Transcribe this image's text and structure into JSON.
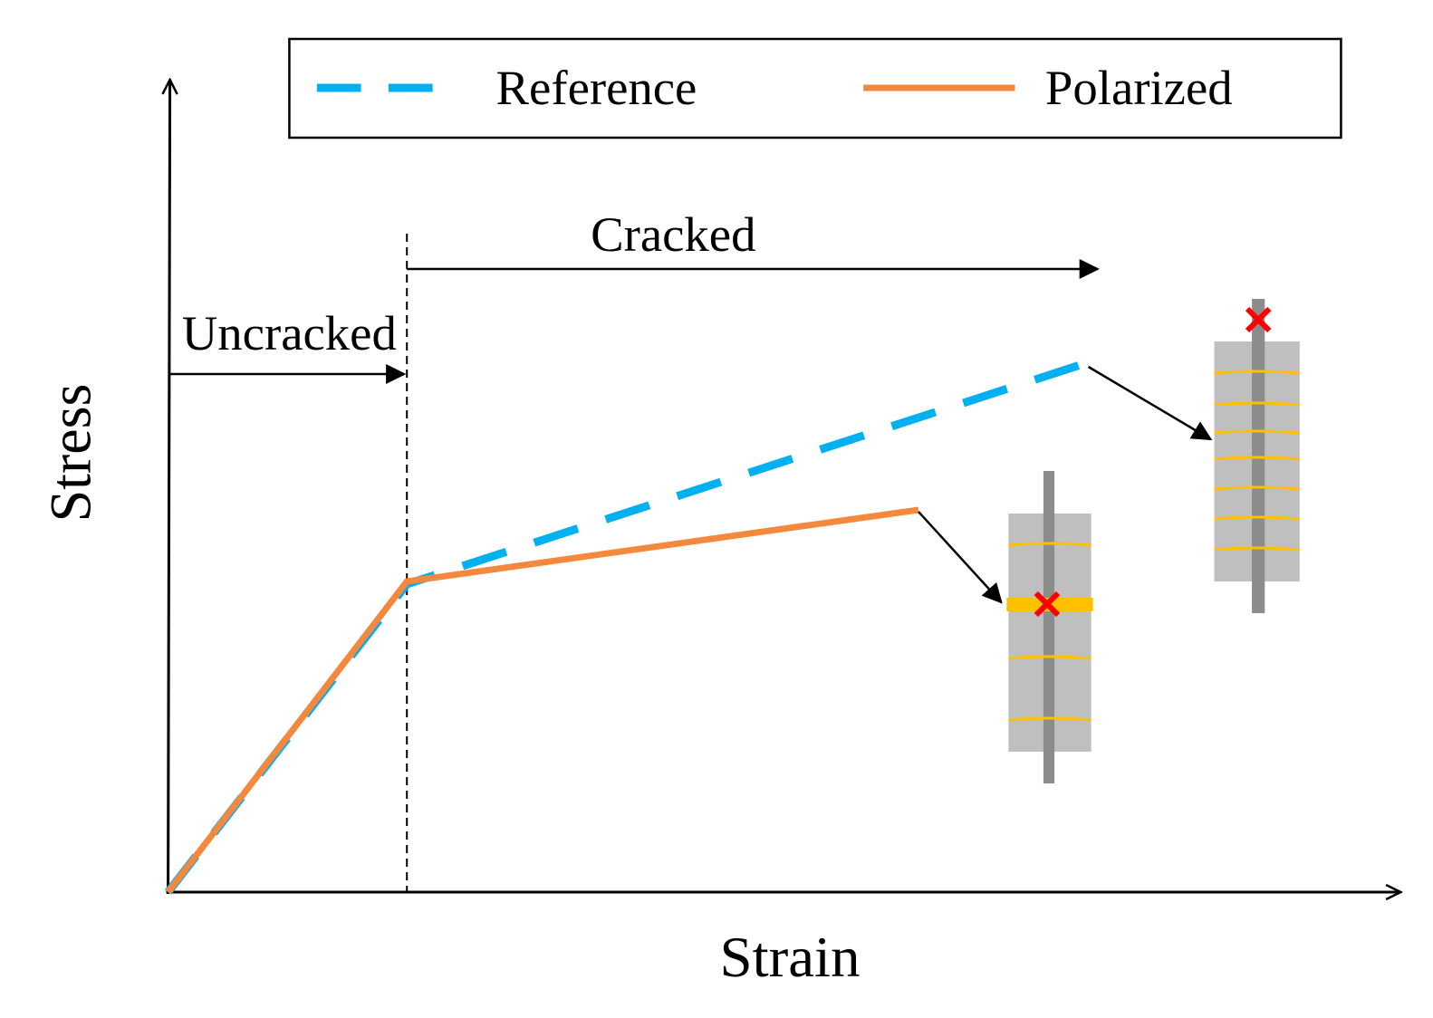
{
  "legend": {
    "entries": [
      "Reference",
      "Polarized"
    ]
  },
  "annotations": {
    "cracked": "Cracked",
    "uncracked": "Uncracked"
  },
  "axes": {
    "x_label": "Strain",
    "y_label": "Stress"
  }
}
